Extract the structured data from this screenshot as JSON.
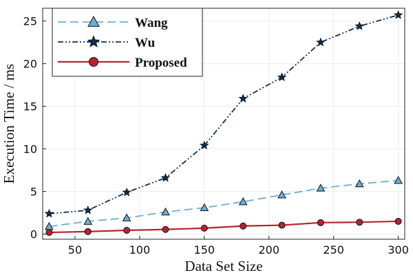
{
  "chart_data": {
    "type": "line",
    "title": "",
    "xlabel": "Data Set Size",
    "ylabel": "Execution Time / ms",
    "xlim": [
      25,
      305
    ],
    "ylim": [
      -0.6,
      26.5
    ],
    "xticks": [
      50,
      100,
      150,
      200,
      250,
      300
    ],
    "yticks": [
      0,
      5,
      10,
      15,
      20,
      25
    ],
    "grid": true,
    "legend_position": "top-left",
    "x": [
      30,
      60,
      90,
      120,
      150,
      180,
      210,
      240,
      270,
      300
    ],
    "series": [
      {
        "name": "Wang",
        "values": [
          0.9,
          1.5,
          1.9,
          2.6,
          3.1,
          3.8,
          4.6,
          5.4,
          5.9,
          6.3
        ],
        "color": "#6aaed6",
        "marker": "triangle",
        "dash": "longdash"
      },
      {
        "name": "Wu",
        "values": [
          2.4,
          2.8,
          4.9,
          6.6,
          10.4,
          15.9,
          18.4,
          22.5,
          24.4,
          25.7
        ],
        "color": "#0b2f55",
        "marker": "star",
        "dash": "dashdotdot"
      },
      {
        "name": "Proposed",
        "values": [
          0.2,
          0.3,
          0.45,
          0.55,
          0.7,
          0.95,
          1.05,
          1.35,
          1.4,
          1.5
        ],
        "color": "#b52330",
        "marker": "circle",
        "dash": "solid"
      }
    ]
  }
}
